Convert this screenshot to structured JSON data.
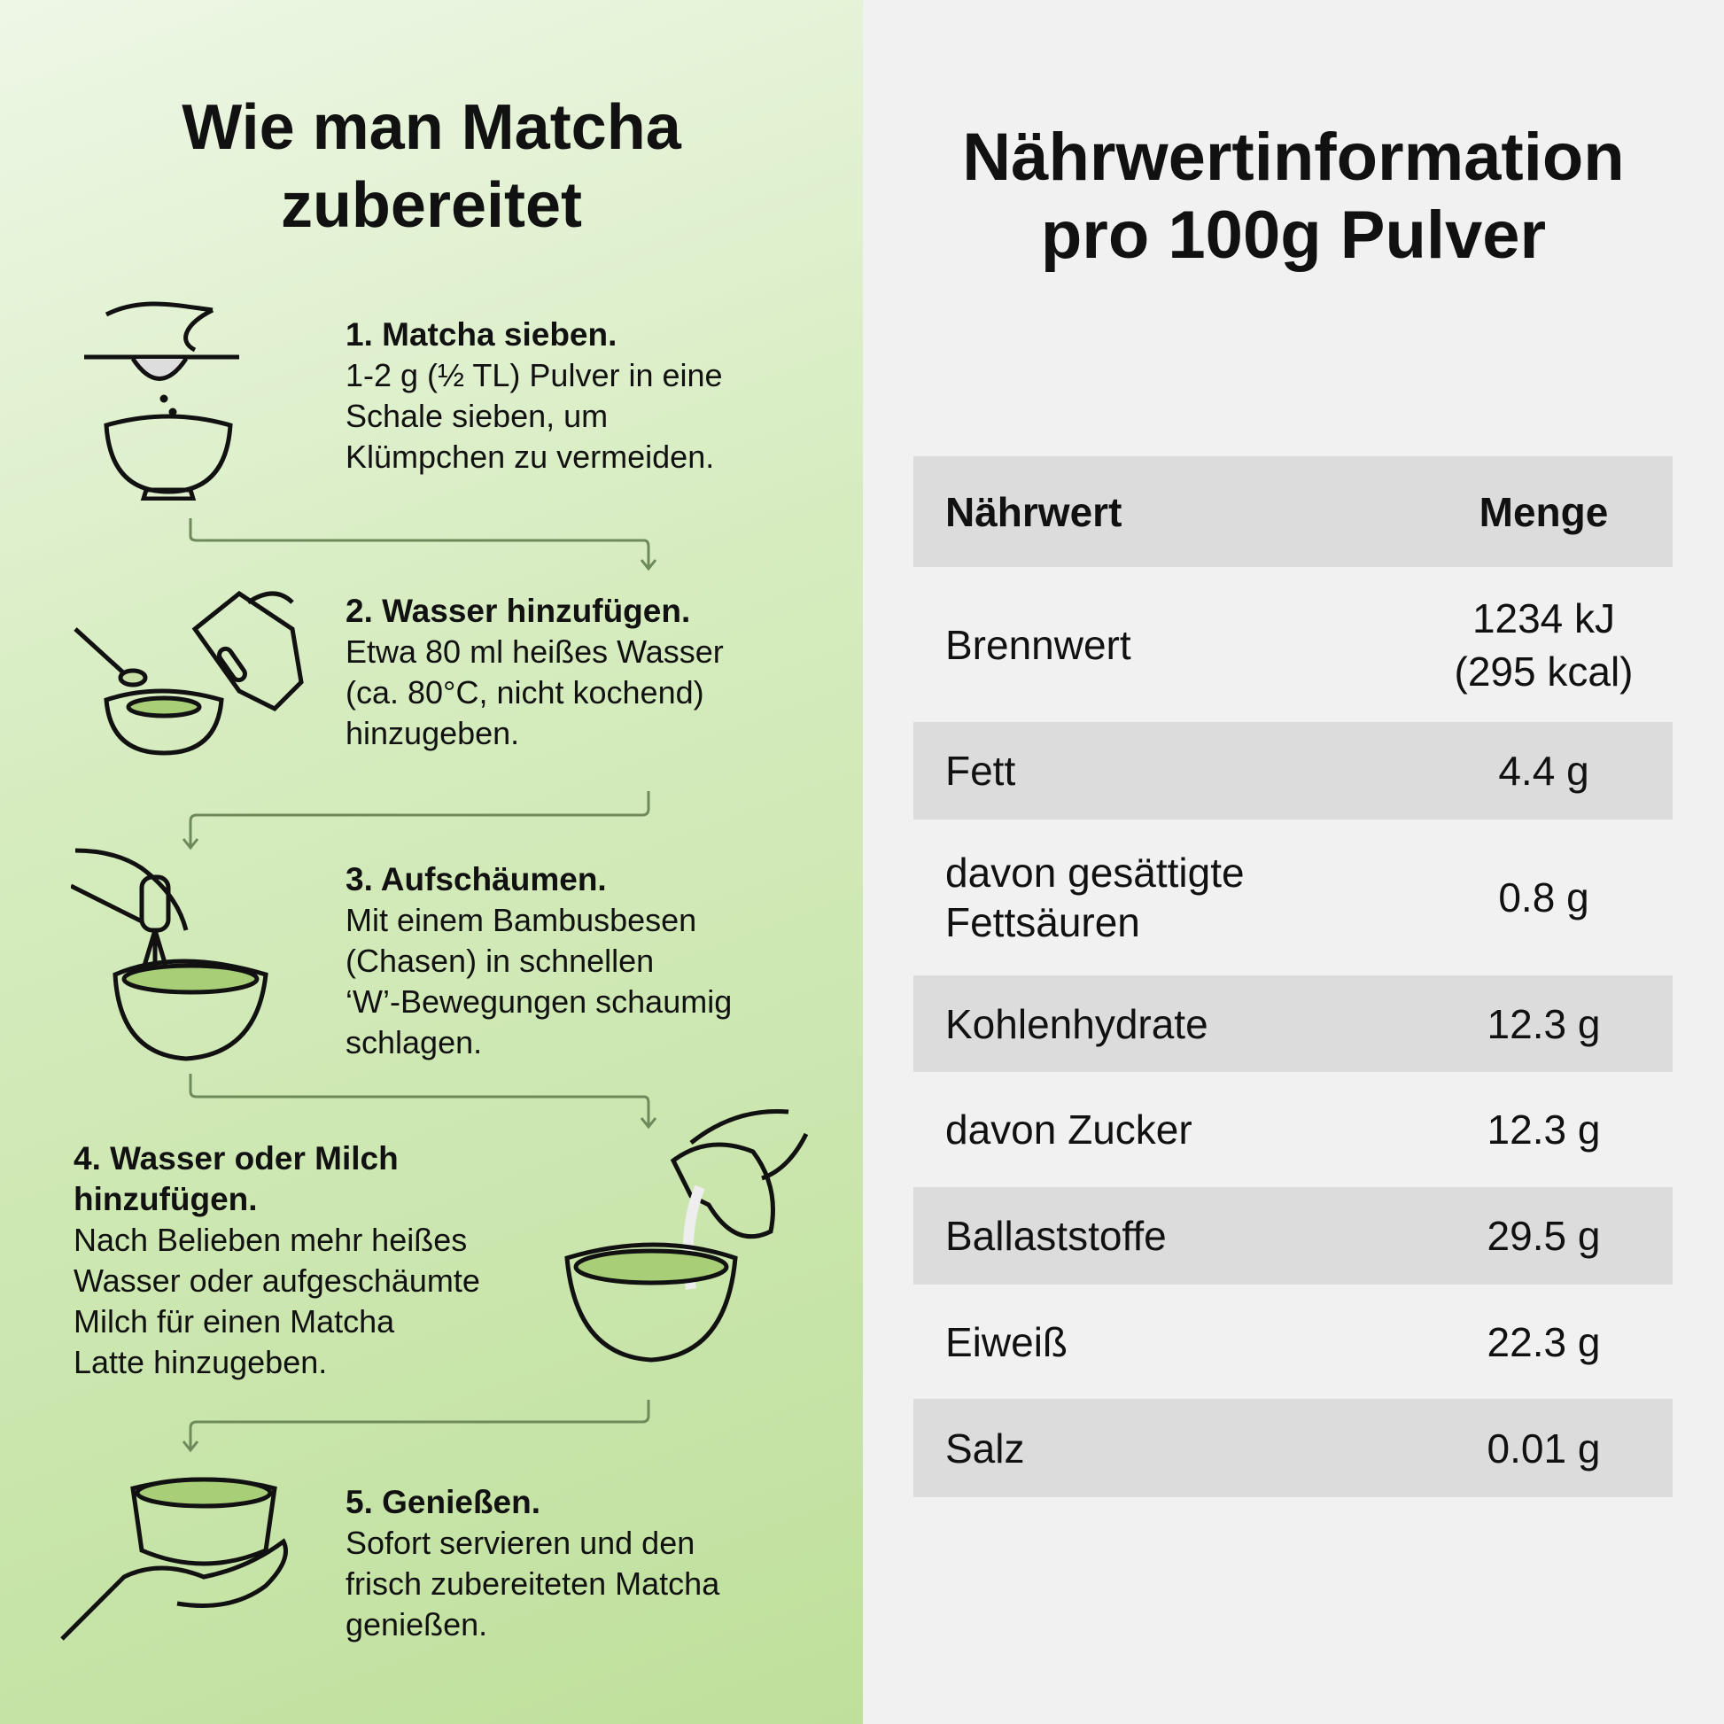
{
  "left": {
    "title_line1": "Wie man Matcha",
    "title_line2": "zubereitet",
    "steps": [
      {
        "title": "1. Matcha sieben.",
        "body": [
          "1-2 g (½ TL) Pulver in eine",
          "Schale sieben, um",
          "Klümpchen zu vermeiden."
        ],
        "icon": "sieve-bowl-icon"
      },
      {
        "title": "2. Wasser hinzufügen.",
        "body": [
          "Etwa 80 ml heißes Wasser",
          "(ca. 80°C, nicht kochend)",
          "hinzugeben."
        ],
        "icon": "kettle-bowl-icon"
      },
      {
        "title": "3. Aufschäumen.",
        "body": [
          "Mit einem Bambusbesen",
          "(Chasen) in schnellen",
          "‘W’-Bewegungen schaumig",
          "schlagen."
        ],
        "icon": "whisk-bowl-icon"
      },
      {
        "title": "4. Wasser oder Milch hinzufügen.",
        "body": [
          "Nach Belieben mehr heißes",
          "Wasser oder aufgeschäumte",
          "Milch für einen Matcha",
          "Latte hinzugeben."
        ],
        "icon": "pitcher-bowl-icon"
      },
      {
        "title": "5. Genießen.",
        "body": [
          "Sofort servieren und den",
          "frisch zubereiteten Matcha",
          "genießen."
        ],
        "icon": "hand-cup-icon"
      }
    ]
  },
  "right": {
    "title_line1": "Nährwertinformation",
    "title_line2": "pro 100g Pulver",
    "table": {
      "headers": [
        "Nährwert",
        "Menge"
      ],
      "rows": [
        {
          "name": "Brennwert",
          "value": "1234 kJ\n(295 kcal)"
        },
        {
          "name": "Fett",
          "value": "4.4 g"
        },
        {
          "name": "davon gesättigte Fettsäuren",
          "value": "0.8 g"
        },
        {
          "name": "Kohlenhydrate",
          "value": "12.3 g"
        },
        {
          "name": "davon Zucker",
          "value": "12.3 g"
        },
        {
          "name": "Ballaststoffe",
          "value": "29.5 g"
        },
        {
          "name": "Eiweiß",
          "value": "22.3 g"
        },
        {
          "name": "Salz",
          "value": "0.01 g"
        }
      ]
    }
  },
  "colors": {
    "matcha": "#a8cf78",
    "line": "#6f8a5a",
    "row_alt": "#dcdcdc"
  }
}
